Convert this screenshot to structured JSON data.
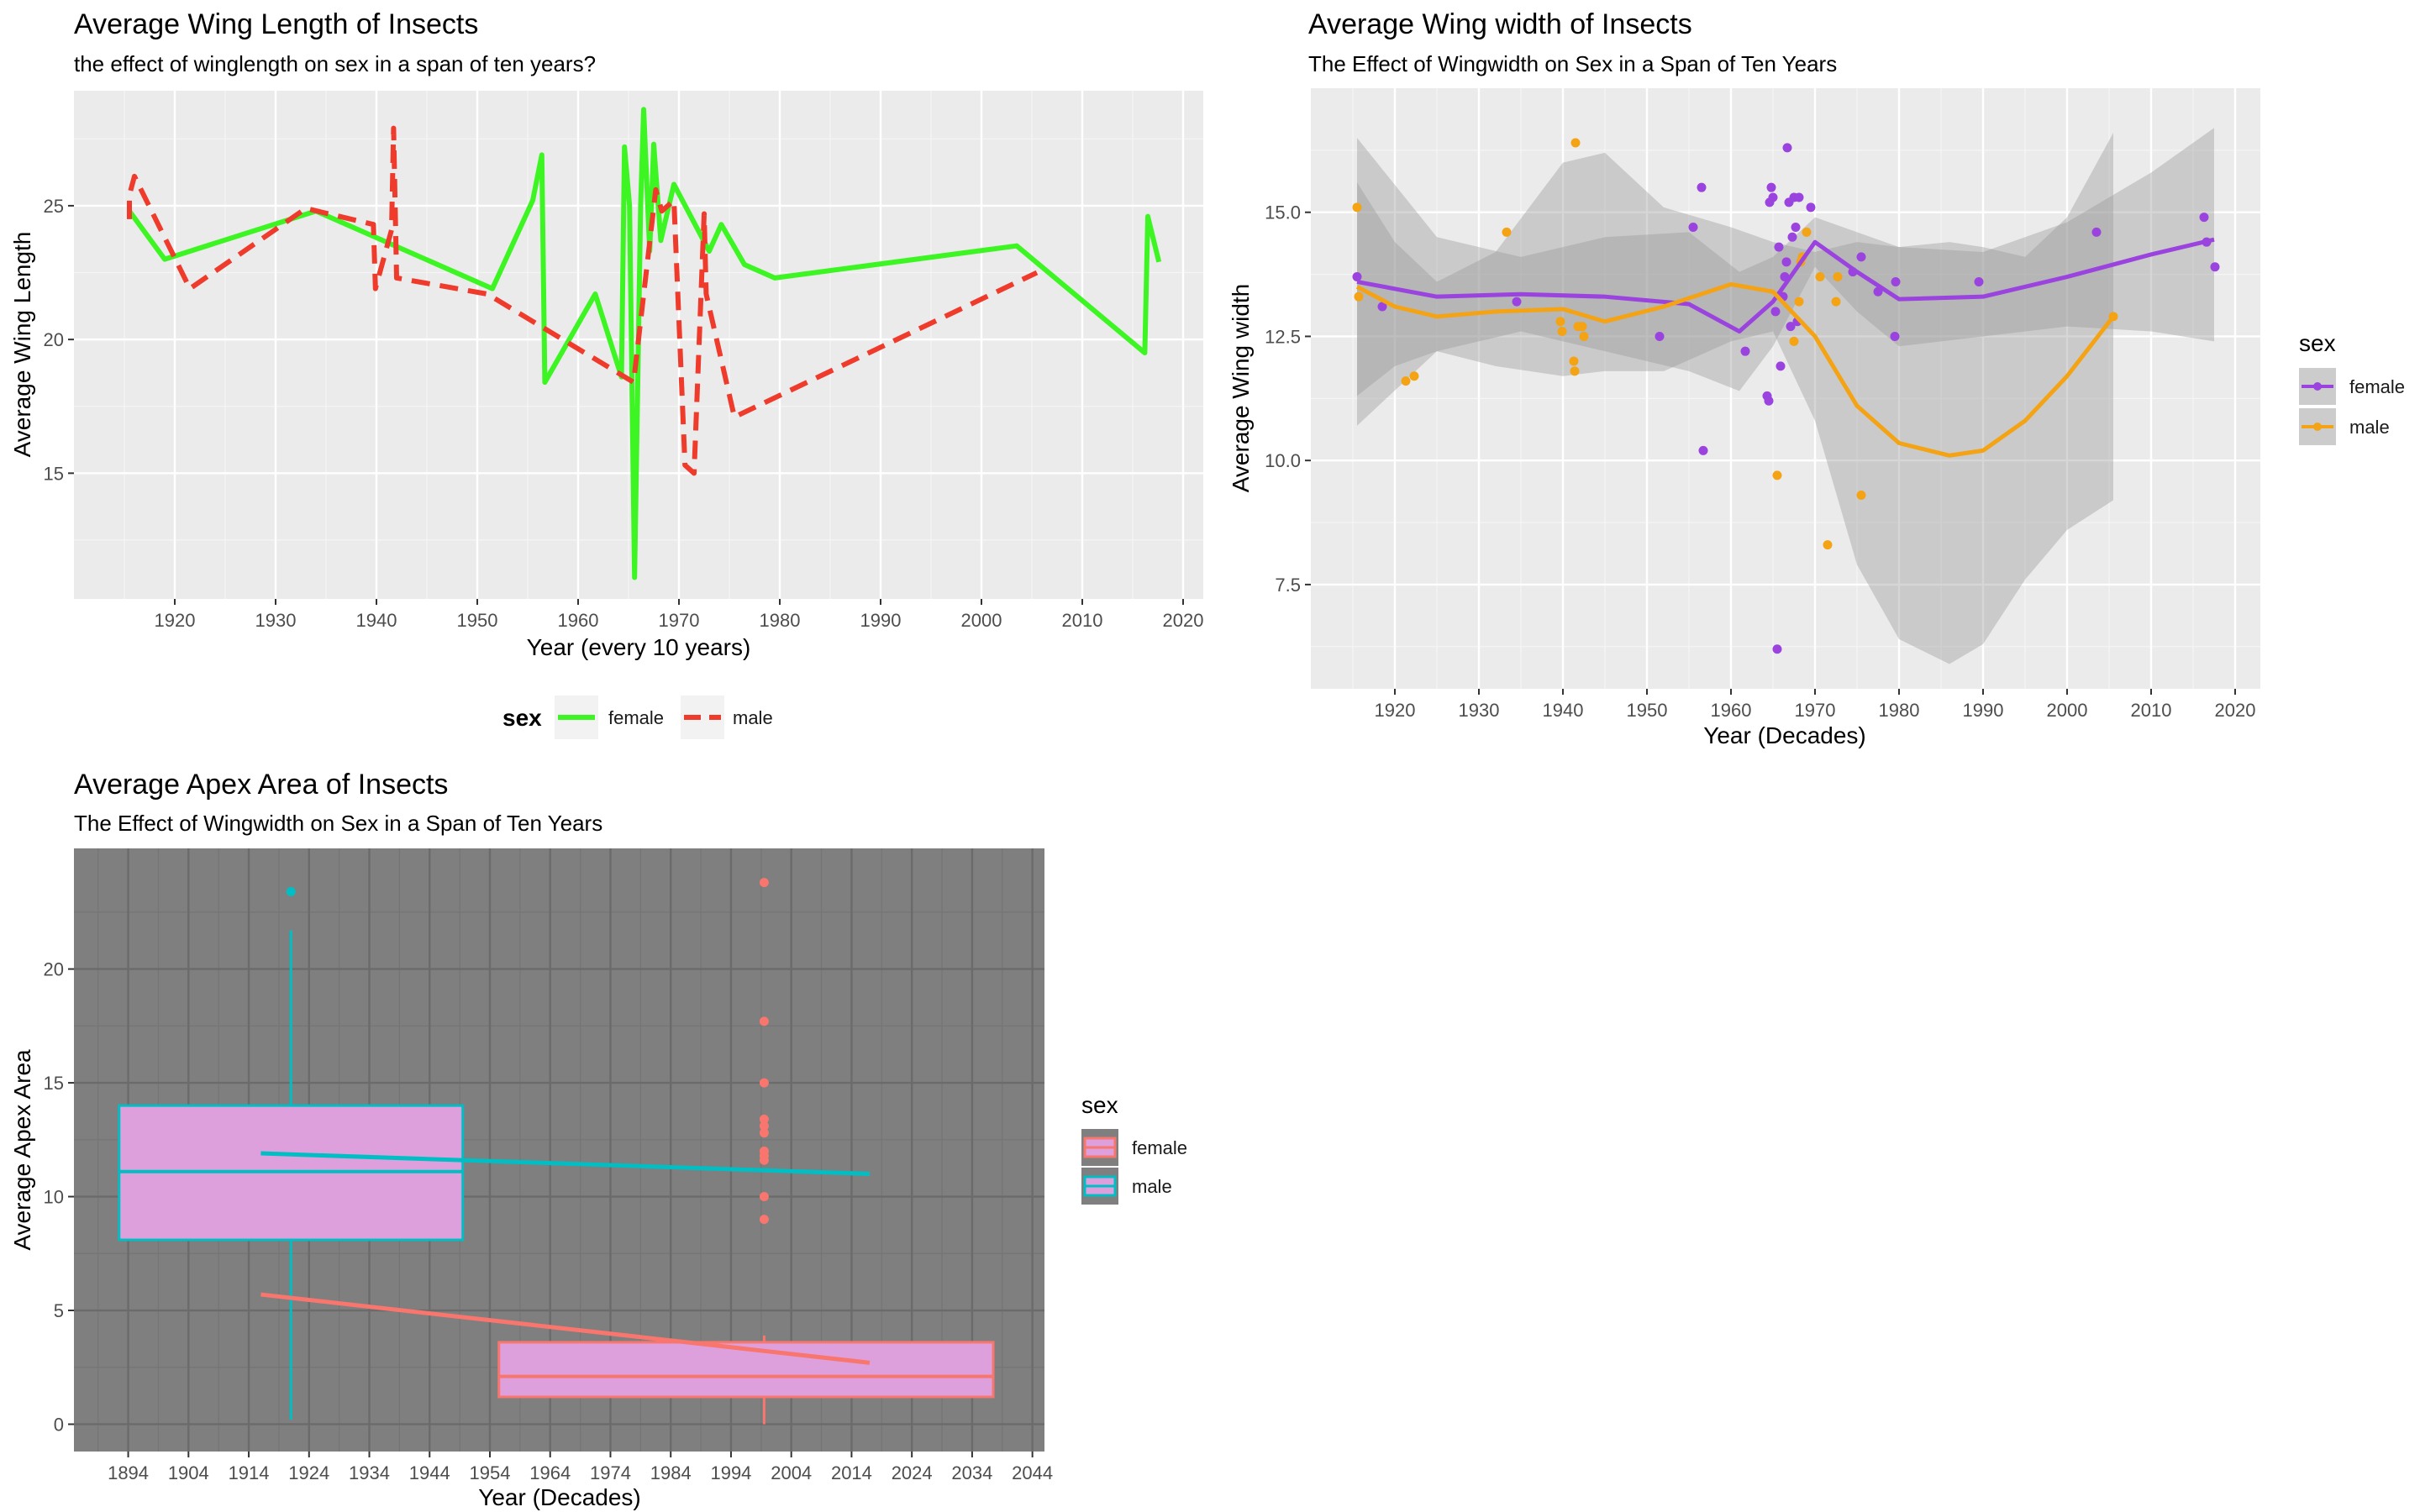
{
  "chart_data": [
    {
      "type": "line",
      "title": "Average Wing Length of Insects",
      "subtitle": "the effect of winglength on sex in a span of ten years?",
      "xlabel": "Year (every 10 years)",
      "ylabel": "Average Wing Length",
      "xlim": [
        1910,
        2022
      ],
      "ylim": [
        10.3,
        29.3
      ],
      "xticks": [
        1920,
        1930,
        1940,
        1950,
        1960,
        1970,
        1980,
        1990,
        2000,
        2010,
        2020
      ],
      "yticks": [
        15,
        20,
        25
      ],
      "grid": true,
      "legend": {
        "title": "sex",
        "position": "bottom"
      },
      "series": [
        {
          "name": "female",
          "color": "#3df522",
          "dash": "solid",
          "x": [
            1915.5,
            1919,
            1934,
            1951.5,
            1955.5,
            1956.4,
            1956.7,
            1961.7,
            1964.3,
            1964.6,
            1965.1,
            1965.6,
            1966.2,
            1966.5,
            1967.1,
            1967.5,
            1968.2,
            1969.5,
            1973,
            1974.2,
            1976.5,
            1979.5,
            2003.5,
            2016.2,
            2016.5,
            2017.6
          ],
          "y": [
            24.8,
            23,
            24.8,
            21.9,
            25.2,
            26.9,
            18.4,
            21.7,
            18.6,
            27.2,
            25,
            11.1,
            25,
            28.6,
            23.3,
            27.3,
            23.7,
            25.8,
            23.3,
            24.3,
            22.8,
            22.3,
            23.5,
            19.5,
            24.6,
            22.9
          ]
        },
        {
          "name": "male",
          "color": "#ee3b2c",
          "dash": "dashed",
          "x": [
            1915.5,
            1915.5,
            1916,
            1921.5,
            1933,
            1939.7,
            1939.9,
            1941.5,
            1941.7,
            1942,
            1951,
            1965.5,
            1967.7,
            1968.3,
            1969.5,
            1970.6,
            1971.5,
            1972.5,
            1972.7,
            1975.5,
            2005.5
          ],
          "y": [
            24.5,
            25.4,
            26.1,
            21.9,
            24.9,
            24.3,
            21.9,
            24.1,
            27.9,
            22.3,
            21.7,
            18.4,
            25.6,
            24.8,
            25.2,
            15.3,
            15,
            24.7,
            21.7,
            17.1,
            22.5
          ]
        }
      ]
    },
    {
      "type": "scatter",
      "title": "Average Wing width of Insects",
      "subtitle": "The Effect of Wingwidth on Sex in a Span of Ten Years",
      "xlabel": "Year (Decades)",
      "ylabel": "Average Wing width",
      "xlim": [
        1910,
        2023
      ],
      "ylim": [
        5.4,
        17.5
      ],
      "xticks": [
        1920,
        1930,
        1940,
        1950,
        1960,
        1970,
        1980,
        1990,
        2000,
        2010,
        2020
      ],
      "yticks": [
        7.5,
        10.0,
        12.5,
        15.0
      ],
      "ytick_labels": [
        "7.5",
        "10.0",
        "12.5",
        "15.0"
      ],
      "grid": true,
      "legend": {
        "title": "sex",
        "position": "right"
      },
      "series": [
        {
          "name": "female",
          "color": "#9a43de",
          "points": [
            [
              1915.5,
              13.7
            ],
            [
              1918.5,
              13.1
            ],
            [
              1934.5,
              13.2
            ],
            [
              1951.5,
              12.5
            ],
            [
              1955.5,
              14.7
            ],
            [
              1956.5,
              15.5
            ],
            [
              1956.7,
              10.2
            ],
            [
              1961.7,
              12.2
            ],
            [
              1964.3,
              11.3
            ],
            [
              1964.5,
              11.2
            ],
            [
              1964.6,
              15.2
            ],
            [
              1964.8,
              15.5
            ],
            [
              1965,
              15.3
            ],
            [
              1965.3,
              13
            ],
            [
              1965.5,
              6.2
            ],
            [
              1965.7,
              14.3
            ],
            [
              1965.9,
              11.9
            ],
            [
              1966.2,
              13.3
            ],
            [
              1966.4,
              13.7
            ],
            [
              1966.6,
              14
            ],
            [
              1966.7,
              16.3
            ],
            [
              1966.9,
              15.2
            ],
            [
              1967.1,
              12.7
            ],
            [
              1967.3,
              14.5
            ],
            [
              1967.5,
              15.3
            ],
            [
              1967.7,
              14.7
            ],
            [
              1967.9,
              12.8
            ],
            [
              1968.1,
              15.3
            ],
            [
              1969.5,
              15.1
            ],
            [
              1974.5,
              13.8
            ],
            [
              1975.5,
              14.1
            ],
            [
              1977.5,
              13.4
            ],
            [
              1979.5,
              12.5
            ],
            [
              1979.6,
              13.6
            ],
            [
              1989.5,
              13.6
            ],
            [
              2003.5,
              14.6
            ],
            [
              2016.3,
              14.9
            ],
            [
              2016.6,
              14.4
            ],
            [
              2017.6,
              13.9
            ]
          ],
          "fit": {
            "x": [
              1915.5,
              1925,
              1935,
              1945,
              1955,
              1961,
              1965,
              1970,
              1975,
              1980,
              1990,
              2000,
              2010,
              2017.5
            ],
            "y": [
              13.6,
              13.3,
              13.35,
              13.3,
              13.15,
              12.6,
              13.2,
              14.4,
              13.8,
              13.25,
              13.3,
              13.7,
              14.15,
              14.45
            ]
          }
        },
        {
          "name": "male",
          "color": "#f4a315",
          "points": [
            [
              1915.5,
              15.1
            ],
            [
              1915.7,
              13.3
            ],
            [
              1921.3,
              11.6
            ],
            [
              1922.3,
              11.7
            ],
            [
              1933.3,
              14.6
            ],
            [
              1939.7,
              12.8
            ],
            [
              1939.9,
              12.6
            ],
            [
              1941.3,
              12
            ],
            [
              1941.4,
              11.8
            ],
            [
              1941.5,
              16.4
            ],
            [
              1941.8,
              12.7
            ],
            [
              1942.3,
              12.7
            ],
            [
              1942.5,
              12.5
            ],
            [
              1965.5,
              9.7
            ],
            [
              1967.5,
              12.4
            ],
            [
              1968.1,
              13.2
            ],
            [
              1968.3,
              14
            ],
            [
              1968.5,
              14.1
            ],
            [
              1969,
              14.6
            ],
            [
              1970.6,
              13.7
            ],
            [
              1971.5,
              8.3
            ],
            [
              1972.5,
              13.2
            ],
            [
              1972.7,
              13.7
            ],
            [
              1975.5,
              9.3
            ],
            [
              2005.5,
              12.9
            ]
          ],
          "fit": {
            "x": [
              1915.5,
              1920,
              1925,
              1932,
              1940,
              1945,
              1952,
              1960,
              1965,
              1970,
              1975,
              1980,
              1986,
              1990,
              1995,
              2000,
              2005.5
            ],
            "y": [
              13.5,
              13.1,
              12.9,
              13,
              13.05,
              12.8,
              13.1,
              13.55,
              13.4,
              12.5,
              11.1,
              10.35,
              10.1,
              10.2,
              10.8,
              11.7,
              12.9
            ]
          }
        }
      ],
      "bands": [
        {
          "series": "female",
          "x": [
            1915.5,
            1925,
            1935,
            1945,
            1955,
            1961,
            1965,
            1970,
            1975,
            1980,
            1990,
            2000,
            2010,
            2017.5
          ],
          "lower": [
            10.7,
            12.2,
            12.6,
            12.2,
            11.8,
            11.4,
            12.3,
            13.9,
            13,
            12.3,
            12.5,
            12.7,
            12.6,
            12.4
          ],
          "upper": [
            16.5,
            14.5,
            14.1,
            14.5,
            14.6,
            13.8,
            14.1,
            14.9,
            14.6,
            14.3,
            14.2,
            14.8,
            15.8,
            16.7
          ]
        },
        {
          "series": "male",
          "x": [
            1915.5,
            1920,
            1925,
            1932,
            1940,
            1945,
            1952,
            1960,
            1965,
            1970,
            1975,
            1980,
            1986,
            1990,
            1995,
            2000,
            2005.5
          ],
          "lower": [
            11.3,
            11.9,
            12.2,
            11.9,
            11.7,
            11.8,
            11.8,
            12.4,
            12.6,
            10.8,
            7.9,
            6.4,
            5.9,
            6.3,
            7.6,
            8.6,
            9.2
          ],
          "upper": [
            15.6,
            14.4,
            13.6,
            14.2,
            16,
            16.2,
            15.1,
            14.7,
            14.4,
            14.2,
            14.4,
            14.3,
            14.4,
            14.3,
            14.1,
            14.9,
            16.6
          ]
        }
      ]
    },
    {
      "type": "box",
      "title": "Average Apex Area of Insects",
      "subtitle": "The Effect of Wingwidth on Sex in a Span of Ten Years",
      "xlabel": "Year (Decades)",
      "ylabel": "Average Apex Area",
      "xlim": [
        1885,
        2046
      ],
      "ylim": [
        -1.2,
        25.3
      ],
      "xticks": [
        1894,
        1904,
        1914,
        1924,
        1934,
        1944,
        1954,
        1964,
        1974,
        1984,
        1994,
        2004,
        2014,
        2024,
        2034,
        2044
      ],
      "yticks": [
        0,
        5,
        10,
        15,
        20
      ],
      "grid": true,
      "legend": {
        "title": "sex",
        "position": "right"
      },
      "series": [
        {
          "name": "female",
          "color": "#f8766d",
          "box": {
            "x0": 1955.5,
            "x1": 2037.5,
            "q1": 1.2,
            "median": 2.1,
            "q3": 3.6,
            "whisker_x": 1999.5,
            "whisker_low": 0,
            "whisker_high": 3.9
          },
          "outliers": [
            [
              1999.5,
              23.8
            ],
            [
              1999.5,
              17.7
            ],
            [
              1999.5,
              15
            ],
            [
              1999.5,
              13.4
            ],
            [
              1999.5,
              13.1
            ],
            [
              1999.5,
              12.8
            ],
            [
              1999.5,
              12
            ],
            [
              1999.5,
              11.8
            ],
            [
              1999.5,
              11.6
            ],
            [
              1999.5,
              10
            ],
            [
              1999.5,
              9
            ]
          ],
          "trend": {
            "x": [
              1916,
              2017
            ],
            "y": [
              5.7,
              2.7
            ]
          }
        },
        {
          "name": "male",
          "color": "#00bfc4",
          "box": {
            "x0": 1892.5,
            "x1": 1949.5,
            "q1": 8.1,
            "median": 11.1,
            "q3": 14,
            "whisker_x": 1921,
            "whisker_low": 0.2,
            "whisker_high": 21.7
          },
          "outliers": [
            [
              1921,
              23.4
            ]
          ],
          "trend": {
            "x": [
              1916,
              2017
            ],
            "y": [
              11.9,
              11
            ]
          }
        }
      ]
    }
  ]
}
